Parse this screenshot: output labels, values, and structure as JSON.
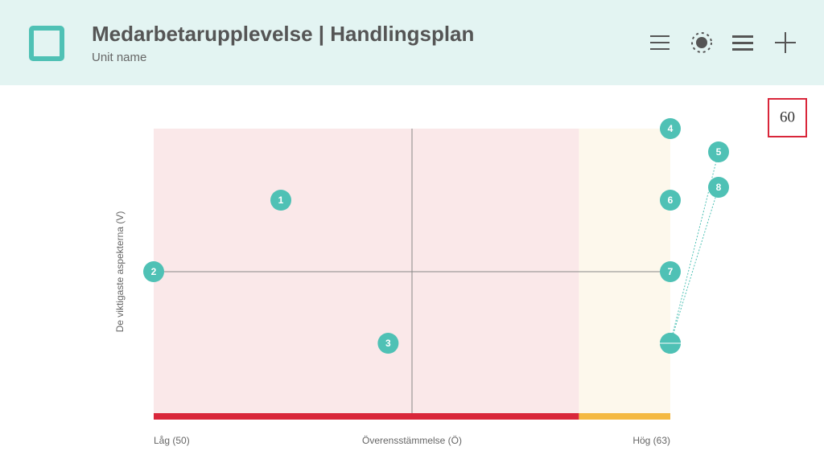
{
  "header": {
    "title": "Medarbetarupplevelse | Handlingsplan",
    "subtitle": "Unit name"
  },
  "badge": "60",
  "chart_data": {
    "type": "scatter",
    "xlabel": "Överensstämmelse (Ö)",
    "ylabel": "De viktigaste aspekterna (V)",
    "xlow_label": "Låg (50)",
    "xhigh_label": "Hög (63)",
    "xlim": [
      50,
      63
    ],
    "ylim": [
      0,
      4
    ],
    "xmid": 56.5,
    "ymid": 2,
    "threshold": 60.7,
    "color": "#4fc1b5",
    "points": [
      {
        "label": "1",
        "x": 53.2,
        "y": 3
      },
      {
        "label": "2",
        "x": 50,
        "y": 2
      },
      {
        "label": "3",
        "x": 55.9,
        "y": 1
      },
      {
        "label": "4",
        "x": 63,
        "y": 4
      },
      {
        "label": "5",
        "x": 63,
        "y": 1
      },
      {
        "label": "6",
        "x": 63,
        "y": 3
      },
      {
        "label": "7",
        "x": 63,
        "y": 2
      },
      {
        "label": "8",
        "x": 63,
        "y": 1
      }
    ]
  }
}
